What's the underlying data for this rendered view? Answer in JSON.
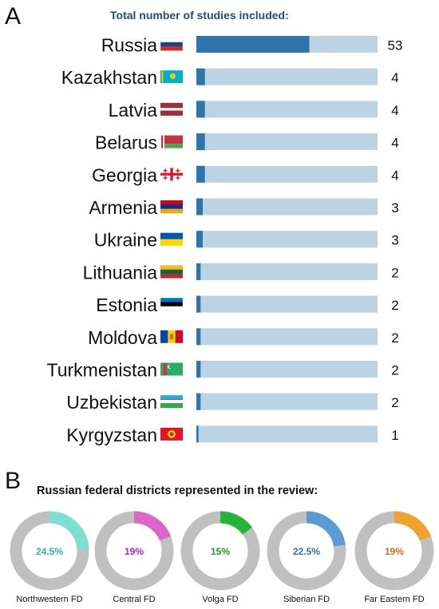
{
  "panel_a": {
    "letter": "A",
    "title": "Total number of studies included:"
  },
  "panel_b": {
    "letter": "B",
    "title": "Russian federal districts represented in the review:"
  },
  "colors": {
    "bar_fill": "#2e75ab",
    "bar_track": "#bcd3e4",
    "donut_track": "#c0c0c0"
  },
  "chart_data": [
    {
      "type": "bar",
      "orientation": "horizontal",
      "title": "Total number of studies included:",
      "xlim": [
        0,
        85
      ],
      "categories": [
        "Russia",
        "Kazakhstan",
        "Latvia",
        "Belarus",
        "Georgia",
        "Armenia",
        "Ukraine",
        "Lithuania",
        "Estonia",
        "Moldova",
        "Turkmenistan",
        "Uzbekistan",
        "Kyrgyzstan"
      ],
      "values": [
        53,
        4,
        4,
        4,
        4,
        3,
        3,
        2,
        2,
        2,
        2,
        2,
        1
      ],
      "labels": [
        "53",
        "4",
        "4",
        "4",
        "4",
        "3",
        "3",
        "2",
        "2",
        "2",
        "2",
        "2",
        "1"
      ],
      "flag_icons": [
        "russia-flag-icon",
        "kazakhstan-flag-icon",
        "latvia-flag-icon",
        "belarus-flag-icon",
        "georgia-flag-icon",
        "armenia-flag-icon",
        "ukraine-flag-icon",
        "lithuania-flag-icon",
        "estonia-flag-icon",
        "moldova-flag-icon",
        "turkmenistan-flag-icon",
        "uzbekistan-flag-icon",
        "kyrgyzstan-flag-icon"
      ]
    },
    {
      "type": "pie",
      "subtype": "donut",
      "title": "Russian federal districts represented in the review:",
      "categories": [
        "Northwestern FD",
        "Central FD",
        "Volga FD",
        "Siberian FD",
        "Far Eastern FD"
      ],
      "values": [
        24.5,
        19,
        15,
        22.5,
        19
      ],
      "labels": [
        "24.5%",
        "19%",
        "15%",
        "22.5%",
        "19%"
      ],
      "colors": [
        "#7be0cf",
        "#d966c8",
        "#23b43a",
        "#5b9bd5",
        "#f0a22e"
      ],
      "label_colors": [
        "#2bb79d",
        "#c81fb1",
        "#1e9e2e",
        "#2e74b5",
        "#e06b14"
      ]
    }
  ]
}
